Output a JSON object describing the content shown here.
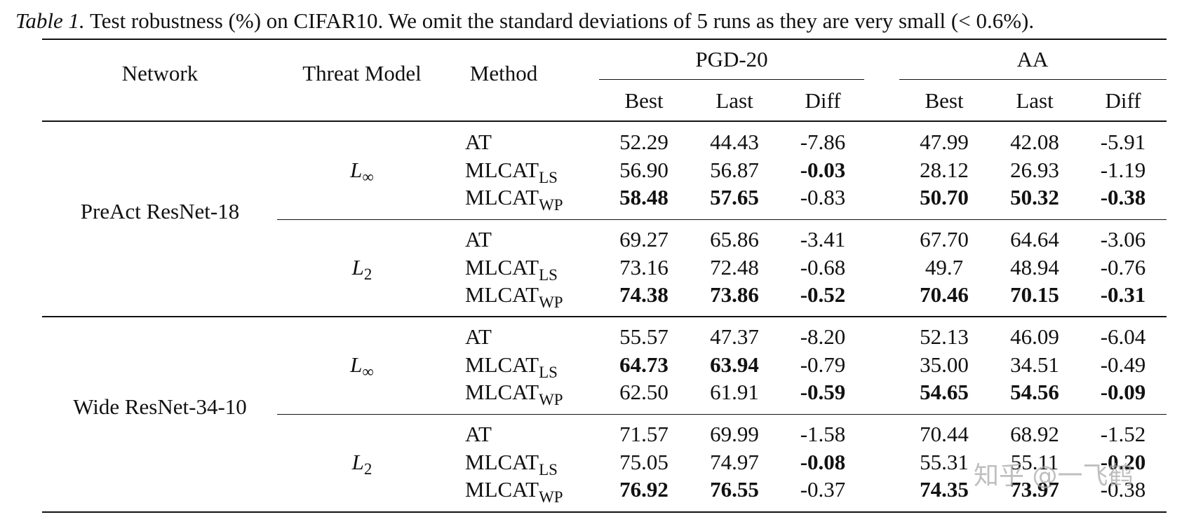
{
  "caption": {
    "label": "Table 1.",
    "text": " Test robustness (%) on CIFAR10. We omit the standard deviations of 5 runs as they are very small (< 0.6%)."
  },
  "header": {
    "network": "Network",
    "threat_model": "Threat Model",
    "method": "Method",
    "pgd_group": "PGD-20",
    "aa_group": "AA",
    "best": "Best",
    "last": "Last",
    "diff": "Diff"
  },
  "networks": [
    "PreAct ResNet-18",
    "Wide ResNet-34-10"
  ],
  "threats": [
    {
      "base": "L",
      "sub": "∞"
    },
    {
      "base": "L",
      "sub": "2"
    }
  ],
  "methods": [
    {
      "base": "AT",
      "sub": ""
    },
    {
      "base": "MLCAT",
      "sub": "LS"
    },
    {
      "base": "MLCAT",
      "sub": "WP"
    }
  ],
  "rows": [
    {
      "cells": [
        "52.29",
        "44.43",
        "-7.86",
        "47.99",
        "42.08",
        "-5.91"
      ],
      "bold": [
        false,
        false,
        false,
        false,
        false,
        false
      ]
    },
    {
      "cells": [
        "56.90",
        "56.87",
        "-0.03",
        "28.12",
        "26.93",
        "-1.19"
      ],
      "bold": [
        false,
        false,
        true,
        false,
        false,
        false
      ]
    },
    {
      "cells": [
        "58.48",
        "57.65",
        "-0.83",
        "50.70",
        "50.32",
        "-0.38"
      ],
      "bold": [
        true,
        true,
        false,
        true,
        true,
        true
      ]
    },
    {
      "cells": [
        "69.27",
        "65.86",
        "-3.41",
        "67.70",
        "64.64",
        "-3.06"
      ],
      "bold": [
        false,
        false,
        false,
        false,
        false,
        false
      ]
    },
    {
      "cells": [
        "73.16",
        "72.48",
        "-0.68",
        "49.7",
        "48.94",
        "-0.76"
      ],
      "bold": [
        false,
        false,
        false,
        false,
        false,
        false
      ]
    },
    {
      "cells": [
        "74.38",
        "73.86",
        "-0.52",
        "70.46",
        "70.15",
        "-0.31"
      ],
      "bold": [
        true,
        true,
        true,
        true,
        true,
        true
      ]
    },
    {
      "cells": [
        "55.57",
        "47.37",
        "-8.20",
        "52.13",
        "46.09",
        "-6.04"
      ],
      "bold": [
        false,
        false,
        false,
        false,
        false,
        false
      ]
    },
    {
      "cells": [
        "64.73",
        "63.94",
        "-0.79",
        "35.00",
        "34.51",
        "-0.49"
      ],
      "bold": [
        true,
        true,
        false,
        false,
        false,
        false
      ]
    },
    {
      "cells": [
        "62.50",
        "61.91",
        "-0.59",
        "54.65",
        "54.56",
        "-0.09"
      ],
      "bold": [
        false,
        false,
        true,
        true,
        true,
        true
      ]
    },
    {
      "cells": [
        "71.57",
        "69.99",
        "-1.58",
        "70.44",
        "68.92",
        "-1.52"
      ],
      "bold": [
        false,
        false,
        false,
        false,
        false,
        false
      ]
    },
    {
      "cells": [
        "75.05",
        "74.97",
        "-0.08",
        "55.31",
        "55.11",
        "-0.20"
      ],
      "bold": [
        false,
        false,
        true,
        false,
        false,
        true
      ]
    },
    {
      "cells": [
        "76.92",
        "76.55",
        "-0.37",
        "74.35",
        "73.97",
        "-0.38"
      ],
      "bold": [
        true,
        true,
        false,
        true,
        true,
        false
      ]
    }
  ],
  "watermark": "知乎 @一飞鹤"
}
